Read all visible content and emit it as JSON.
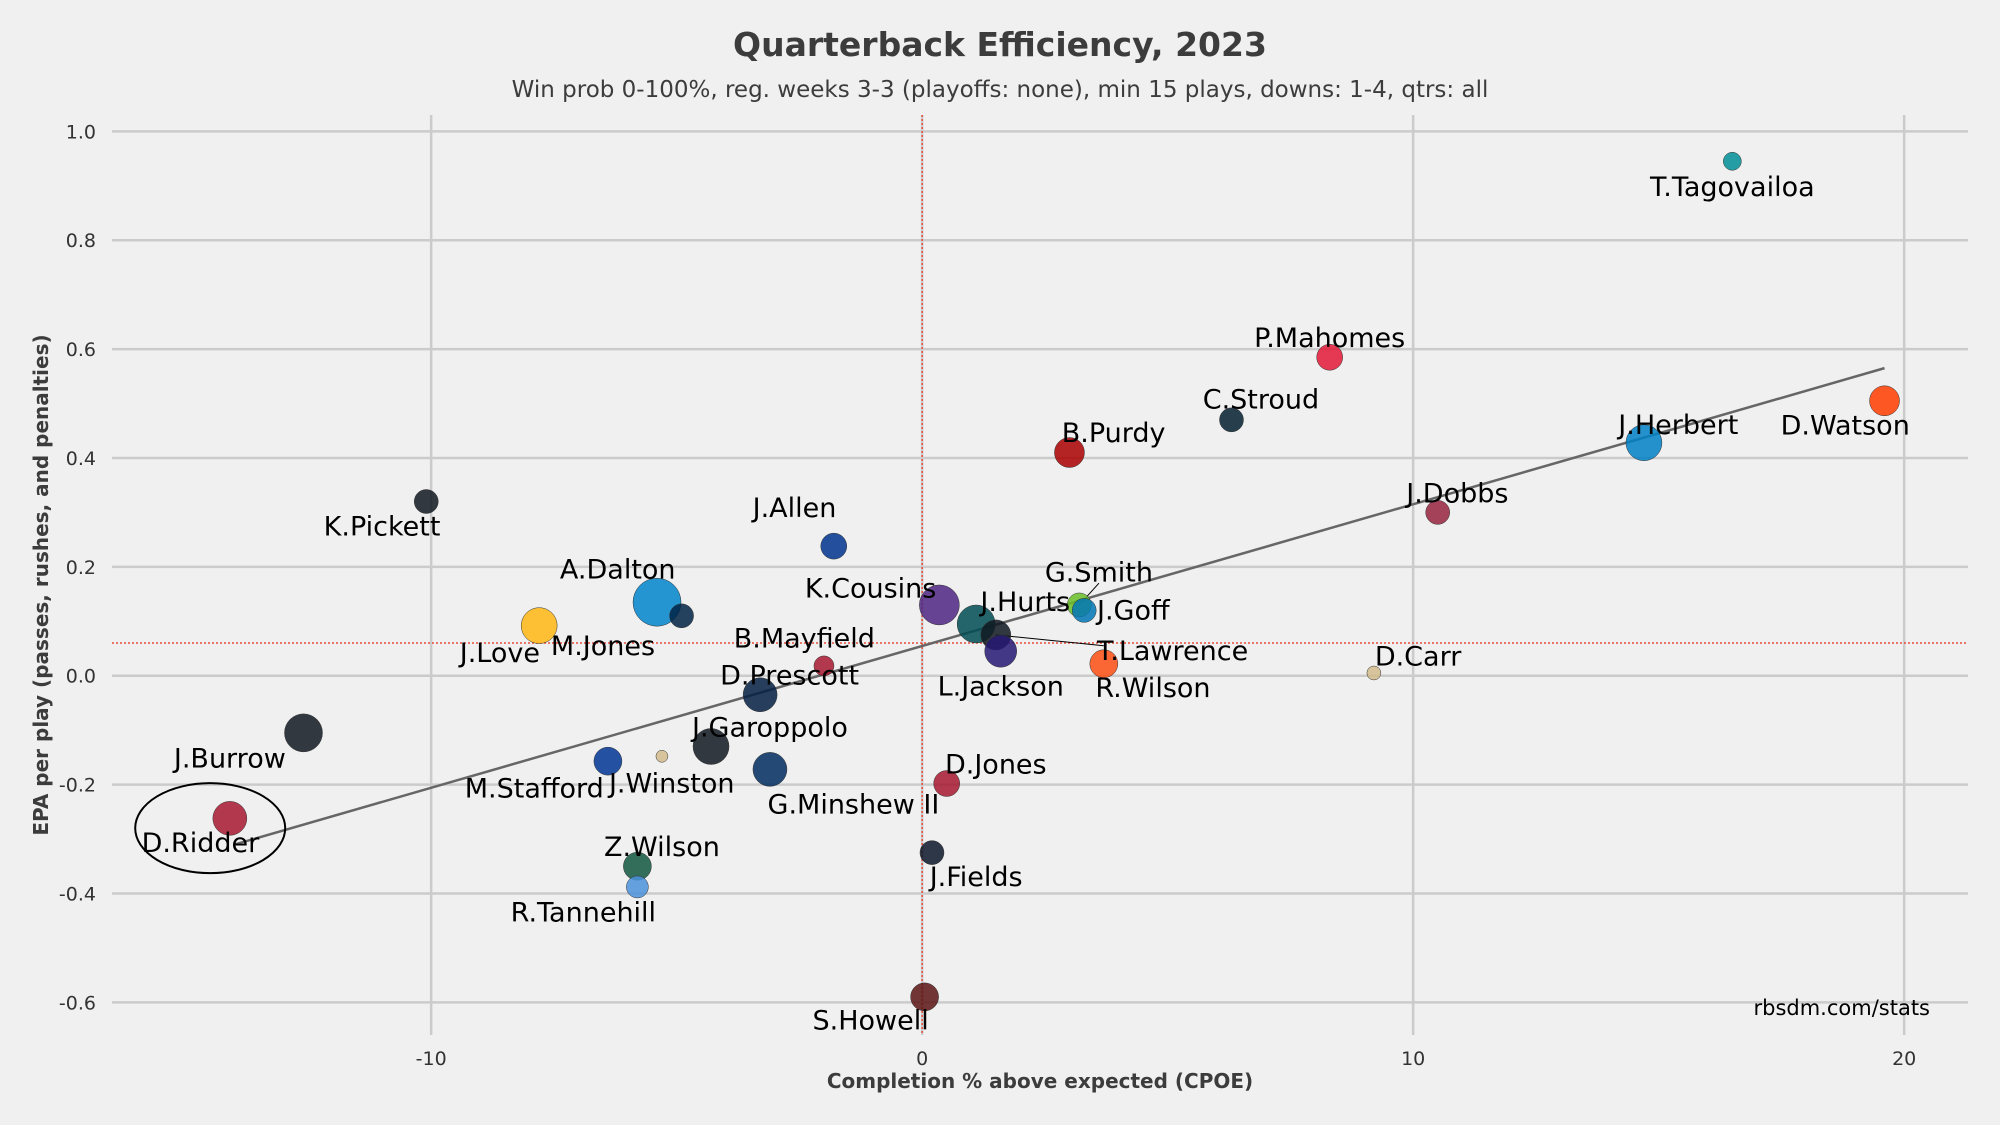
{
  "chart_data": {
    "type": "scatter",
    "title": "Quarterback Efficiency, 2023",
    "subtitle": "Win prob 0-100%, reg. weeks 3-3 (playoffs: none), min 15 plays, downs: 1-4, qtrs: all",
    "xlabel": "Completion % above expected (CPOE)",
    "ylabel": "EPA per play (passes, rushes, and penalties)",
    "xlim": [
      -16.5,
      21.3
    ],
    "ylim": [
      -0.66,
      1.03
    ],
    "xticks": [
      -10,
      0,
      10,
      20
    ],
    "yticks": [
      -0.6,
      -0.4,
      -0.2,
      0.0,
      0.2,
      0.4,
      0.6,
      0.8,
      1.0
    ],
    "xtick_labels": [
      "-10",
      "0",
      "10",
      "20"
    ],
    "ytick_labels": [
      "-0.6",
      "-0.4",
      "-0.2",
      "0.0",
      "0.2",
      "0.4",
      "0.6",
      "0.8",
      "1.0"
    ],
    "grid": true,
    "mean_lines": {
      "x": 0.0,
      "y": 0.06,
      "color": "#e74c3c"
    },
    "trend_line": {
      "x": [
        -14.0,
        19.6
      ],
      "y": [
        -0.31,
        0.565
      ],
      "color": "#666666"
    },
    "highlight_circle": {
      "x": -14.5,
      "y": -0.28,
      "label": "D.Ridder"
    },
    "watermark": "rbsdm.com/stats",
    "points": [
      {
        "name": "T.Tagovailoa",
        "x": 16.5,
        "y": 0.945,
        "size": 9,
        "color": "#008e97",
        "label_dx": 0.0,
        "label_dy": -0.047
      },
      {
        "name": "P.Mahomes",
        "x": 8.3,
        "y": 0.585,
        "size": 13,
        "color": "#e31837",
        "label_dx": 0.0,
        "label_dy": 0.035
      },
      {
        "name": "D.Watson",
        "x": 19.6,
        "y": 0.505,
        "size": 15,
        "color": "#ff3c00",
        "label_dx": -0.8,
        "label_dy": -0.045
      },
      {
        "name": "C.Stroud",
        "x": 6.3,
        "y": 0.47,
        "size": 12,
        "color": "#03202f",
        "label_dx": 0.6,
        "label_dy": 0.037
      },
      {
        "name": "J.Herbert",
        "x": 14.7,
        "y": 0.428,
        "size": 18,
        "color": "#0080c6",
        "label_dx": 0.7,
        "label_dy": 0.033
      },
      {
        "name": "B.Purdy",
        "x": 3.0,
        "y": 0.41,
        "size": 15,
        "color": "#aa0000",
        "label_dx": 0.9,
        "label_dy": 0.036
      },
      {
        "name": "K.Pickett",
        "x": -10.1,
        "y": 0.32,
        "size": 12,
        "color": "#101820",
        "label_dx": -0.9,
        "label_dy": -0.046
      },
      {
        "name": "J.Dobbs",
        "x": 10.5,
        "y": 0.3,
        "size": 12,
        "color": "#97233f",
        "label_dx": 0.4,
        "label_dy": 0.035
      },
      {
        "name": "J.Allen",
        "x": -1.8,
        "y": 0.238,
        "size": 13,
        "color": "#00338d",
        "label_dx": -0.8,
        "label_dy": 0.07
      },
      {
        "name": "G.Smith",
        "x": 3.2,
        "y": 0.13,
        "size": 12,
        "color": "#69be28",
        "label_dx": 0.4,
        "label_dy": 0.06
      },
      {
        "name": "A.Dalton",
        "x": -5.4,
        "y": 0.135,
        "size": 24,
        "color": "#0085ca",
        "label_dx": -0.8,
        "label_dy": 0.06
      },
      {
        "name": "K.Cousins",
        "x": 0.35,
        "y": 0.13,
        "size": 20,
        "color": "#4f2683",
        "label_dx": -1.4,
        "label_dy": 0.03
      },
      {
        "name": "J.Goff",
        "x": 3.3,
        "y": 0.12,
        "size": 12,
        "color": "#0076b6",
        "label_dx": 1.0,
        "label_dy": 0.0
      },
      {
        "name": "M.Jones",
        "x": -4.9,
        "y": 0.11,
        "size": 12,
        "color": "#002244",
        "label_dx": -1.6,
        "label_dy": -0.055
      },
      {
        "name": "J.Hurts",
        "x": 1.1,
        "y": 0.095,
        "size": 19,
        "color": "#004c54",
        "label_dx": 1.0,
        "label_dy": 0.04
      },
      {
        "name": "J.Love",
        "x": -7.8,
        "y": 0.092,
        "size": 18,
        "color": "#ffb612",
        "label_dx": -0.8,
        "label_dy": -0.05
      },
      {
        "name": "T.Lawrence",
        "x": 1.5,
        "y": 0.075,
        "size": 15,
        "color": "#101820",
        "label_dx": 3.6,
        "label_dy": -0.03
      },
      {
        "name": "L.Jackson",
        "x": 1.6,
        "y": 0.045,
        "size": 16,
        "color": "#241773",
        "label_dx": 0.0,
        "label_dy": -0.065
      },
      {
        "name": "R.Wilson",
        "x": 3.7,
        "y": 0.022,
        "size": 14,
        "color": "#fb4f14",
        "label_dx": 1.0,
        "label_dy": -0.045
      },
      {
        "name": "B.Mayfield",
        "x": -2.0,
        "y": 0.018,
        "size": 10,
        "color": "#a71930",
        "label_dx": -0.4,
        "label_dy": 0.05
      },
      {
        "name": "D.Carr",
        "x": 9.2,
        "y": 0.005,
        "size": 7,
        "color": "#d3bc8d",
        "label_dx": 0.9,
        "label_dy": 0.03
      },
      {
        "name": "D.Prescott",
        "x": -3.3,
        "y": -0.035,
        "size": 17,
        "color": "#041e42",
        "label_dx": 0.6,
        "label_dy": 0.035
      },
      {
        "name": "J.Burrow",
        "x": -12.6,
        "y": -0.105,
        "size": 19,
        "color": "#101820",
        "label_dx": -1.5,
        "label_dy": -0.047
      },
      {
        "name": "J.Garoppolo",
        "x": -4.3,
        "y": -0.13,
        "size": 18,
        "color": "#101820",
        "label_dx": 1.2,
        "label_dy": 0.035
      },
      {
        "name": "J.Winston",
        "x": -5.3,
        "y": -0.148,
        "size": 6,
        "color": "#d3bc8d",
        "label_dx": 0.2,
        "label_dy": -0.05
      },
      {
        "name": "M.Stafford",
        "x": -6.4,
        "y": -0.157,
        "size": 14,
        "color": "#003594",
        "label_dx": -1.5,
        "label_dy": -0.05
      },
      {
        "name": "G.Minshew II",
        "x": -3.1,
        "y": -0.172,
        "size": 17,
        "color": "#002c5f",
        "label_dx": 1.7,
        "label_dy": -0.065
      },
      {
        "name": "D.Jones",
        "x": 0.5,
        "y": -0.198,
        "size": 13,
        "color": "#a71930",
        "label_dx": 1.0,
        "label_dy": 0.035
      },
      {
        "name": "D.Ridder",
        "x": -14.1,
        "y": -0.262,
        "size": 17,
        "color": "#a71930",
        "label_dx": -0.6,
        "label_dy": -0.045
      },
      {
        "name": "J.Fields",
        "x": 0.2,
        "y": -0.325,
        "size": 12,
        "color": "#0b162a",
        "label_dx": 0.9,
        "label_dy": -0.045
      },
      {
        "name": "Z.Wilson",
        "x": -5.8,
        "y": -0.35,
        "size": 14,
        "color": "#125740",
        "label_dx": 0.5,
        "label_dy": 0.035
      },
      {
        "name": "R.Tannehill",
        "x": -5.8,
        "y": -0.388,
        "size": 11,
        "color": "#4b92db",
        "label_dx": -1.1,
        "label_dy": -0.047
      },
      {
        "name": "S.Howell",
        "x": 0.05,
        "y": -0.59,
        "size": 14,
        "color": "#5a1414",
        "label_dx": -1.1,
        "label_dy": -0.043
      }
    ]
  }
}
